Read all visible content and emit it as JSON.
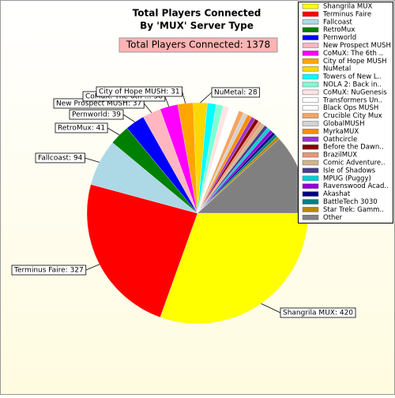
{
  "chart_data": {
    "type": "pie",
    "title": "Total Players Connected",
    "subtitle": "By 'MUX' Server Type",
    "total_label": "Total Players Connected: 1378",
    "categories": [
      "Shangrila MUX",
      "Terminus Faire",
      "Fallcoast",
      "RetroMux",
      "Pernworld",
      "New Prospect MUSH",
      "CoMuX: The 6th ..",
      "City of Hope MUSH",
      "NuMetal",
      "Towers of New L..",
      "NOLA 2: Back in..",
      "CoMuX: NuGenesis",
      "Transformers Un..",
      "Black Ops MUSH",
      "Crucible City Mux",
      "GlobalMUSH",
      "MyrkaMUX",
      "Oathcircle",
      "Before the Dawn..",
      "BrazilMUX",
      "Comic Adventure..",
      "Isle of Shadows",
      "MPUG (Puggy)",
      "Ravenswood Acad..",
      "Akashat",
      "BattleTech 3030",
      "Star Trek: Gamm..",
      "Other"
    ],
    "values": [
      420,
      327,
      94,
      41,
      39,
      37,
      36,
      31,
      28,
      18,
      14,
      12,
      11,
      10,
      10,
      9,
      9,
      8,
      8,
      8,
      7,
      7,
      7,
      7,
      6,
      6,
      6,
      162
    ],
    "value_labels": [
      "Shangrila MUX: 420",
      "Terminus Faire: 327",
      "Fallcoast: 94",
      "RetroMux: 41",
      "Pernworld: 39",
      "New Prospect MUSH: 37",
      "CoMuX: The 6th ..: 36",
      "City of Hope MUSH: 31",
      "NuMetal: 28",
      null,
      null,
      null,
      null,
      null,
      null,
      null,
      null,
      null,
      null,
      null,
      null,
      null,
      null,
      null,
      null,
      null,
      null,
      null
    ],
    "colors": [
      "#ffff00",
      "#ff0000",
      "#add8e6",
      "#008000",
      "#0000ff",
      "#ffb6c1",
      "#ff00ff",
      "#ffa500",
      "#ffd700",
      "#00ffff",
      "#7fffd4",
      "#ffe4e1",
      "#ffffff",
      "#ffffff",
      "#f4a460",
      "#d3d3d3",
      "#ff8c00",
      "#9932cc",
      "#8b0000",
      "#e9967a",
      "#d2b48c",
      "#483d8b",
      "#00ced1",
      "#9400d3",
      "#000080",
      "#008080",
      "#b8860b",
      "#808080"
    ]
  }
}
